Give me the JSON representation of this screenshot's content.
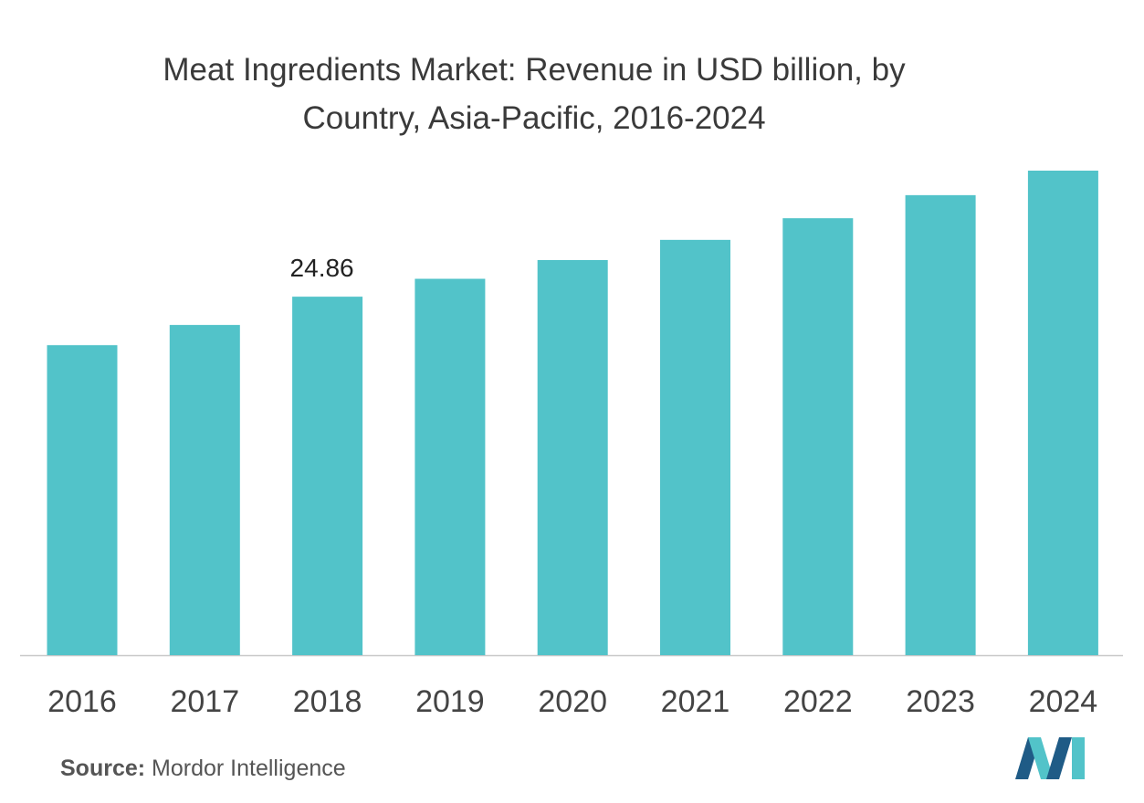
{
  "title_line1": "Meat Ingredients Market: Revenue in USD billion, by",
  "title_line2": "Country, Asia-Pacific, 2016-2024",
  "source_label": "Source:",
  "source_text": "Mordor Intelligence",
  "colors": {
    "bar": "#52c3c9",
    "axis": "#c8c8c8",
    "logo_dark": "#1f5b86",
    "logo_light": "#52c3c9"
  },
  "chart_data": {
    "type": "bar",
    "categories": [
      "2016",
      "2017",
      "2018",
      "2019",
      "2020",
      "2021",
      "2022",
      "2023",
      "2024"
    ],
    "values": [
      21.5,
      22.9,
      24.86,
      26.1,
      27.4,
      28.8,
      30.3,
      31.9,
      33.6
    ],
    "data_labels": [
      null,
      null,
      "24.86",
      null,
      null,
      null,
      null,
      null,
      null
    ],
    "title": "Meat Ingredients Market: Revenue in USD billion, by Country, Asia-Pacific, 2016-2024",
    "xlabel": "",
    "ylabel": "",
    "ylim": [
      0,
      33.6
    ],
    "grid": false,
    "legend": "none"
  }
}
